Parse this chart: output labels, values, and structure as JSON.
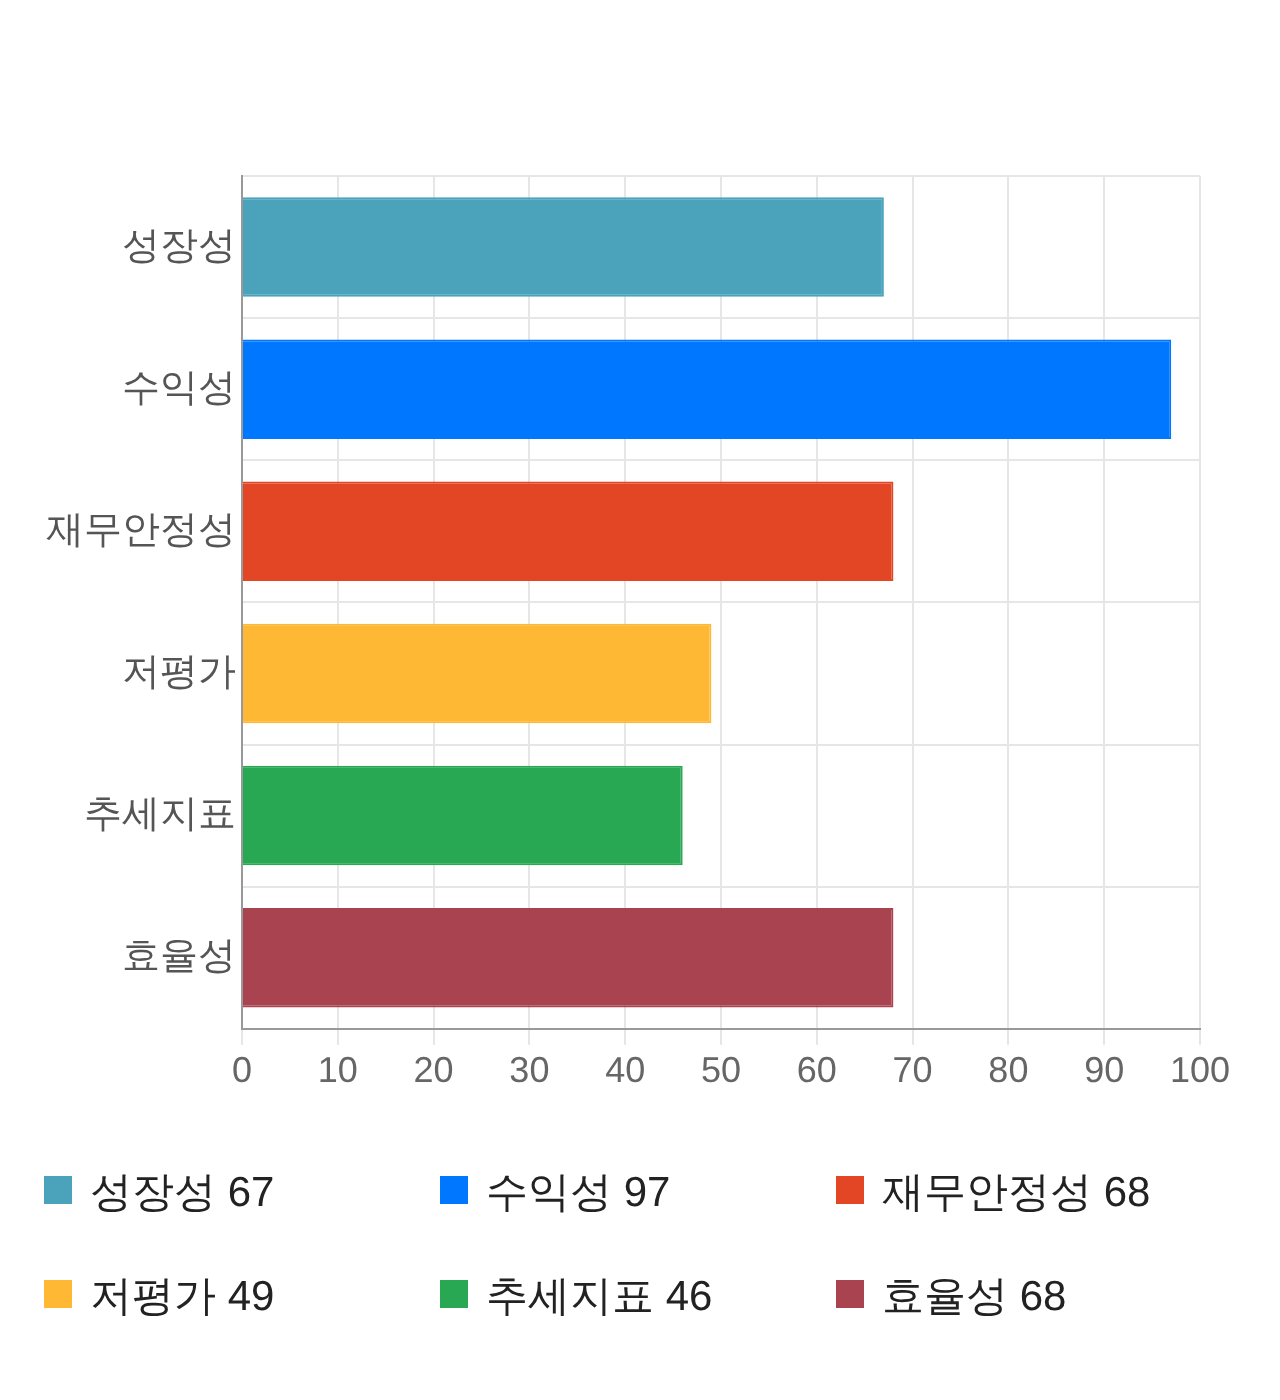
{
  "chart_data": {
    "type": "bar",
    "orientation": "horizontal",
    "categories": [
      "성장성",
      "수익성",
      "재무안정성",
      "저평가",
      "추세지표",
      "효율성"
    ],
    "series": [
      {
        "name": "성장성 67",
        "color": "#4aa3bb",
        "values": [
          67,
          null,
          null,
          null,
          null,
          null
        ]
      },
      {
        "name": "수익성 97",
        "color": "#0077ff",
        "values": [
          null,
          97,
          null,
          null,
          null,
          null
        ]
      },
      {
        "name": "재무안정성 68",
        "color": "#e24624",
        "values": [
          null,
          null,
          68,
          null,
          null,
          null
        ]
      },
      {
        "name": "저평가 49",
        "color": "#ffb833",
        "values": [
          null,
          null,
          null,
          49,
          null,
          null
        ]
      },
      {
        "name": "추세지표 46",
        "color": "#28a853",
        "values": [
          null,
          null,
          null,
          null,
          46,
          null
        ]
      },
      {
        "name": "효율성 68",
        "color": "#a8434f",
        "values": [
          null,
          null,
          null,
          null,
          null,
          68
        ]
      }
    ],
    "xlim": [
      0,
      100
    ],
    "xticks": [
      0,
      10,
      20,
      30,
      40,
      50,
      60,
      70,
      80,
      90,
      100
    ],
    "grid": true,
    "legend": "bottom"
  }
}
